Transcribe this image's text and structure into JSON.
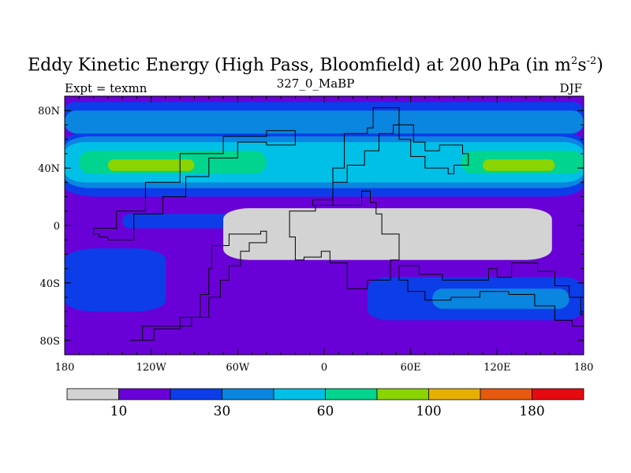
{
  "chart_data": {
    "type": "heatmap",
    "title_main": "Eddy Kinetic Energy (High Pass, Bloomfield) at 200 hPa (in m",
    "title_unit_m_exp": "2",
    "title_unit_s": "s",
    "title_unit_s_exp": "-2",
    "title_close": ")",
    "subtitle": "327_0_MaBP",
    "left_label": "Expt = texmn",
    "right_label": "DJF",
    "x_axis": {
      "range": [
        -180,
        180
      ],
      "ticks": [
        {
          "value": -180,
          "label": "180"
        },
        {
          "value": -120,
          "label": "120W"
        },
        {
          "value": -60,
          "label": "60W"
        },
        {
          "value": 0,
          "label": "0"
        },
        {
          "value": 60,
          "label": "60E"
        },
        {
          "value": 120,
          "label": "120E"
        },
        {
          "value": 180,
          "label": "180"
        }
      ]
    },
    "y_axis": {
      "range": [
        -90,
        90
      ],
      "ticks": [
        {
          "value": 80,
          "label": "80N"
        },
        {
          "value": 40,
          "label": "40N"
        },
        {
          "value": 0,
          "label": "0"
        },
        {
          "value": -40,
          "label": "40S"
        },
        {
          "value": -80,
          "label": "80S"
        }
      ]
    },
    "colorbar": {
      "colors": [
        "#d3d3d3",
        "#6a00d8",
        "#0d3de8",
        "#0a85e0",
        "#00c0e8",
        "#00d48e",
        "#8ad400",
        "#e6b000",
        "#e65a10",
        "#e60a10"
      ],
      "labels": [
        {
          "boundary": 1,
          "label": "10"
        },
        {
          "boundary": 3,
          "label": "30"
        },
        {
          "boundary": 5,
          "label": "60"
        },
        {
          "boundary": 7,
          "label": "100"
        },
        {
          "boundary": 9,
          "label": "180"
        }
      ]
    },
    "field_bands": [
      {
        "level": 1,
        "lat": [
          -90,
          90
        ],
        "lon": [
          -180,
          180
        ]
      },
      {
        "level": 2,
        "lat": [
          72,
          86
        ],
        "lon": [
          -180,
          180
        ]
      },
      {
        "level": 2,
        "lat": [
          20,
          66
        ],
        "lon": [
          -180,
          180
        ]
      },
      {
        "level": 3,
        "lat": [
          64,
          80
        ],
        "lon": [
          -180,
          180
        ]
      },
      {
        "level": 3,
        "lat": [
          26,
          62
        ],
        "lon": [
          -180,
          180
        ]
      },
      {
        "level": 4,
        "lat": [
          30,
          58
        ],
        "lon": [
          -180,
          180
        ]
      },
      {
        "level": 5,
        "lat": [
          36,
          52
        ],
        "lon": [
          -170,
          -40
        ]
      },
      {
        "level": 5,
        "lat": [
          36,
          52
        ],
        "lon": [
          95,
          180
        ]
      },
      {
        "level": 6,
        "lat": [
          38,
          46
        ],
        "lon": [
          -150,
          -90
        ]
      },
      {
        "level": 6,
        "lat": [
          38,
          46
        ],
        "lon": [
          110,
          160
        ]
      },
      {
        "level": 2,
        "lat": [
          -60,
          -16
        ],
        "lon": [
          -180,
          -110
        ]
      },
      {
        "level": 2,
        "lat": [
          -66,
          -36
        ],
        "lon": [
          30,
          180
        ]
      },
      {
        "level": 3,
        "lat": [
          -58,
          -44
        ],
        "lon": [
          75,
          170
        ]
      },
      {
        "level": 2,
        "lat": [
          -2,
          8
        ],
        "lon": [
          -140,
          -60
        ]
      },
      {
        "level": 0,
        "lat": [
          -24,
          12
        ],
        "lon": [
          -70,
          158
        ]
      }
    ],
    "continents": [
      {
        "name": "north-america",
        "points": [
          [
            -20,
            56
          ],
          [
            -40,
            58
          ],
          [
            -60,
            47
          ],
          [
            -80,
            34
          ],
          [
            -96,
            20
          ],
          [
            -112,
            8
          ],
          [
            -132,
            -10
          ],
          [
            -150,
            -8
          ],
          [
            -156,
            -6
          ],
          [
            -160,
            -2
          ],
          [
            -144,
            10
          ],
          [
            -124,
            30
          ],
          [
            -100,
            50
          ],
          [
            -70,
            62
          ],
          [
            -40,
            66
          ],
          [
            -20,
            56
          ]
        ]
      },
      {
        "name": "south-america",
        "points": [
          [
            -78,
            -14
          ],
          [
            -66,
            -6
          ],
          [
            -44,
            -4
          ],
          [
            -40,
            -12
          ],
          [
            -52,
            -18
          ],
          [
            -58,
            -28
          ],
          [
            -66,
            -38
          ],
          [
            -72,
            -50
          ],
          [
            -80,
            -64
          ],
          [
            -92,
            -70
          ],
          [
            -126,
            -80
          ],
          [
            -135,
            -80
          ],
          [
            -118,
            -72
          ],
          [
            -100,
            -64
          ],
          [
            -86,
            -48
          ],
          [
            -80,
            -30
          ],
          [
            -78,
            -14
          ]
        ]
      },
      {
        "name": "eurasia",
        "points": [
          [
            14,
            64
          ],
          [
            30,
            68
          ],
          [
            34,
            82
          ],
          [
            44,
            82
          ],
          [
            52,
            60
          ],
          [
            60,
            48
          ],
          [
            70,
            40
          ],
          [
            86,
            36
          ],
          [
            90,
            42
          ],
          [
            100,
            50
          ],
          [
            96,
            56
          ],
          [
            80,
            52
          ],
          [
            70,
            58
          ],
          [
            62,
            70
          ],
          [
            48,
            64
          ],
          [
            38,
            52
          ],
          [
            28,
            42
          ],
          [
            16,
            30
          ],
          [
            6,
            18
          ],
          [
            -4,
            18
          ],
          [
            -8,
            14
          ],
          [
            6,
            40
          ],
          [
            14,
            64
          ]
        ]
      },
      {
        "name": "africa",
        "points": [
          [
            -24,
            10
          ],
          [
            -6,
            14
          ],
          [
            10,
            14
          ],
          [
            26,
            24
          ],
          [
            32,
            16
          ],
          [
            36,
            8
          ],
          [
            40,
            -6
          ],
          [
            52,
            -24
          ],
          [
            46,
            -38
          ],
          [
            30,
            -44
          ],
          [
            16,
            -26
          ],
          [
            4,
            -18
          ],
          [
            -2,
            -22
          ],
          [
            -14,
            -24
          ],
          [
            -20,
            -8
          ],
          [
            -24,
            10
          ]
        ]
      },
      {
        "name": "australia",
        "points": [
          [
            52,
            -28
          ],
          [
            66,
            -34
          ],
          [
            82,
            -38
          ],
          [
            96,
            -38
          ],
          [
            114,
            -30
          ],
          [
            120,
            -36
          ],
          [
            130,
            -26
          ],
          [
            148,
            -32
          ],
          [
            160,
            -42
          ],
          [
            170,
            -50
          ],
          [
            178,
            -62
          ],
          [
            180,
            -70
          ],
          [
            172,
            -66
          ],
          [
            160,
            -56
          ],
          [
            146,
            -48
          ],
          [
            128,
            -46
          ],
          [
            108,
            -50
          ],
          [
            88,
            -52
          ],
          [
            70,
            -46
          ],
          [
            58,
            -38
          ],
          [
            52,
            -28
          ]
        ]
      }
    ]
  }
}
